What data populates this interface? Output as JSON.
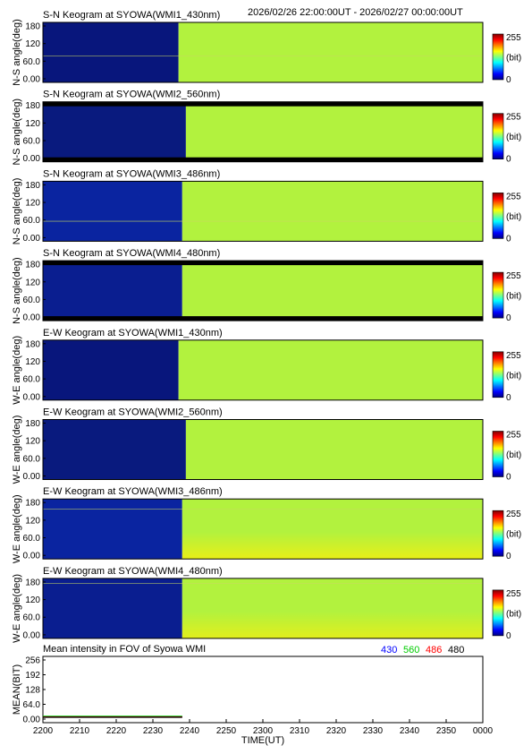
{
  "header": {
    "date_range": "2026/02/26 22:00:00UT - 2026/02/27 00:00:00UT"
  },
  "colorbar": {
    "max_label": "255",
    "unit_label": "(bit)",
    "min_label": "0",
    "stops": [
      "#00007f",
      "#0000ff",
      "#0080ff",
      "#00ffff",
      "#80ff80",
      "#ffff00",
      "#ff8000",
      "#ff0000",
      "#7f0000"
    ]
  },
  "colors": {
    "background": "#ffffff",
    "keogram_dark": "#06157a",
    "keogram_bright": "#b0f03c",
    "curve_430": "#0000ff",
    "curve_560": "#00cc00",
    "curve_486": "#ff0000",
    "curve_480": "#000000"
  },
  "chart_data": [
    {
      "type": "heatmap",
      "title": "S-N Keogram at SYOWA(WMI1_430nm)",
      "ylabel": "N-S angle(deg)",
      "yticks": [
        "180",
        "120",
        "60.0",
        "0.00"
      ],
      "ylim": [
        0,
        180
      ],
      "xlim": [
        "22:00",
        "24:00"
      ],
      "dark_until": "22:37",
      "dark_color": "#08167c",
      "bright_color": "#b2f23e",
      "bright_bottom_color": "#b2f23e",
      "edge_bands": false,
      "hline": 79
    },
    {
      "type": "heatmap",
      "title": "S-N Keogram at SYOWA(WMI2_560nm)",
      "ylabel": "N-S angle(deg)",
      "yticks": [
        "180",
        "120",
        "60.0",
        "0.00"
      ],
      "ylim": [
        0,
        180
      ],
      "xlim": [
        "22:00",
        "24:00"
      ],
      "dark_until": "22:39",
      "dark_color": "#091a7e",
      "bright_color": "#b2f23e",
      "bright_bottom_color": "#b2f23e",
      "edge_bands": true,
      "hline": null
    },
    {
      "type": "heatmap",
      "title": "S-N Keogram at SYOWA(WMI3_486nm)",
      "ylabel": "N-S angle(deg)",
      "yticks": [
        "180",
        "120",
        "60.0",
        "0.00"
      ],
      "ylim": [
        0,
        180
      ],
      "xlim": [
        "22:00",
        "24:00"
      ],
      "dark_until": "22:38",
      "dark_color": "#0a24a0",
      "bright_color": "#b2f23e",
      "bright_bottom_color": "#b2f23e",
      "edge_bands": false,
      "hline": 60
    },
    {
      "type": "heatmap",
      "title": "S-N Keogram at SYOWA(WMI4_480nm)",
      "ylabel": "N-S angle(deg)",
      "yticks": [
        "180",
        "120",
        "60.0",
        "0.00"
      ],
      "ylim": [
        0,
        180
      ],
      "xlim": [
        "22:00",
        "24:00"
      ],
      "dark_until": "22:38",
      "dark_color": "#0a1e90",
      "bright_color": "#b2f23e",
      "bright_bottom_color": "#b2f23e",
      "edge_bands": true,
      "hline": null
    },
    {
      "type": "heatmap",
      "title": "E-W Keogram at SYOWA(WMI1_430nm)",
      "ylabel": "W-E angle(deg)",
      "yticks": [
        "180",
        "120",
        "60.0",
        "0.00"
      ],
      "ylim": [
        0,
        180
      ],
      "xlim": [
        "22:00",
        "24:00"
      ],
      "dark_until": "22:37",
      "dark_color": "#08167c",
      "bright_color": "#b2f23e",
      "bright_bottom_color": "#b2f23e",
      "edge_bands": false,
      "hline": null
    },
    {
      "type": "heatmap",
      "title": "E-W Keogram at SYOWA(WMI2_560nm)",
      "ylabel": "W-E angle(deg)",
      "yticks": [
        "180",
        "120",
        "60.0",
        "0.00"
      ],
      "ylim": [
        0,
        180
      ],
      "xlim": [
        "22:00",
        "24:00"
      ],
      "dark_until": "22:39",
      "dark_color": "#091a7e",
      "bright_color": "#b2f23e",
      "bright_bottom_color": "#b2f23e",
      "edge_bands": false,
      "hline": null
    },
    {
      "type": "heatmap",
      "title": "E-W Keogram at SYOWA(WMI3_486nm)",
      "ylabel": "W-E angle(deg)",
      "yticks": [
        "180",
        "120",
        "60.0",
        "0.00"
      ],
      "ylim": [
        0,
        180
      ],
      "xlim": [
        "22:00",
        "24:00"
      ],
      "dark_until": "22:38",
      "dark_color": "#0a24a0",
      "bright_color": "#b2f23e",
      "bright_bottom_color": "#e8ee18",
      "edge_bands": false,
      "hline": 150
    },
    {
      "type": "heatmap",
      "title": "E-W Keogram at SYOWA(WMI4_480nm)",
      "ylabel": "W-E angle(deg)",
      "yticks": [
        "180",
        "120",
        "60.0",
        "0.00"
      ],
      "ylim": [
        0,
        180
      ],
      "xlim": [
        "22:00",
        "24:00"
      ],
      "dark_until": "22:38",
      "dark_color": "#0a1e90",
      "bright_color": "#b2f23e",
      "bright_bottom_color": "#e2ee1c",
      "edge_bands": false,
      "hline": 165
    },
    {
      "type": "line",
      "title": "Mean intensity in FOV of Syowa WMI",
      "xlabel": "TIME(UT)",
      "ylabel": "MEAN(BIT)",
      "yticks": [
        "256",
        "192",
        "128",
        "64.0",
        "0.00"
      ],
      "ylim": [
        0,
        256
      ],
      "xticks": [
        "2200",
        "2210",
        "2220",
        "2230",
        "2240",
        "2250",
        "2300",
        "2310",
        "2320",
        "2330",
        "2340",
        "2350",
        "0000"
      ],
      "xlim": [
        0,
        120
      ],
      "legend": [
        "430",
        "560",
        "486",
        "480"
      ],
      "legend_position": "top-right",
      "series": [
        {
          "name": "430",
          "x": [
            0,
            38
          ],
          "y": [
            10,
            10
          ]
        },
        {
          "name": "560",
          "x": [
            0,
            38
          ],
          "y": [
            12,
            12
          ]
        },
        {
          "name": "486",
          "x": [
            0,
            38
          ],
          "y": [
            9,
            9
          ]
        },
        {
          "name": "480",
          "x": [
            0,
            38
          ],
          "y": [
            8,
            8
          ]
        }
      ]
    }
  ]
}
